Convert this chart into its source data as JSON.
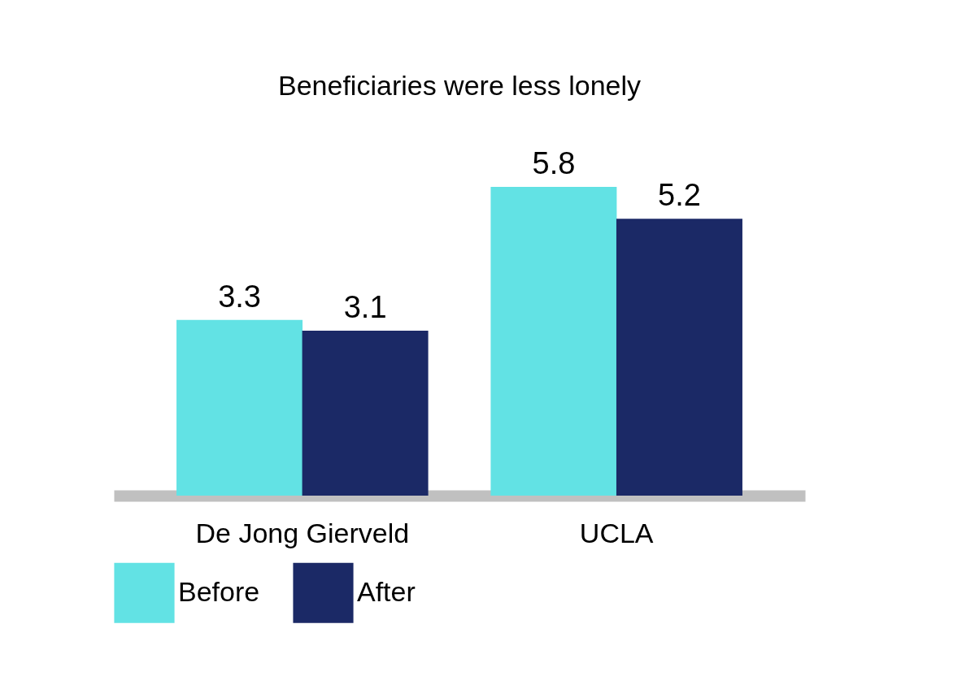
{
  "chart_data": {
    "type": "bar",
    "title": "Beneficiaries were less lonely",
    "categories": [
      "De Jong Gierveld",
      "UCLA"
    ],
    "series": [
      {
        "name": "Before",
        "color": "#62e2e4",
        "values": [
          3.3,
          5.8
        ]
      },
      {
        "name": "After",
        "color": "#1b2966",
        "values": [
          3.1,
          5.2
        ]
      }
    ],
    "data_labels": true,
    "legend": "bottom",
    "grid": false,
    "tick_labels": "x"
  }
}
